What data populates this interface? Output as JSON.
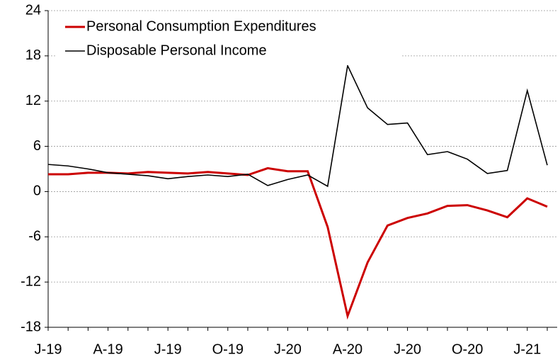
{
  "chart_data": {
    "type": "line",
    "categories": [
      "J-19",
      null,
      null,
      "A-19",
      null,
      null,
      "J-19",
      null,
      null,
      "O-19",
      null,
      null,
      "J-20",
      null,
      null,
      "A-20",
      null,
      null,
      "J-20",
      null,
      null,
      "O-20",
      null,
      null,
      "J-21",
      null
    ],
    "series": [
      {
        "name": "Personal Consumption Expenditures",
        "color": "#cc0000",
        "values": [
          2.3,
          2.3,
          2.5,
          2.5,
          2.4,
          2.6,
          2.5,
          2.4,
          2.6,
          2.4,
          2.2,
          3.1,
          2.7,
          2.7,
          -4.7,
          -16.5,
          -9.4,
          -4.5,
          -3.5,
          -2.9,
          -1.9,
          -1.8,
          -2.5,
          -3.4,
          -0.9,
          -2.0
        ]
      },
      {
        "name": "Disposable Personal Income",
        "color": "#000000",
        "values": [
          3.6,
          3.4,
          3.0,
          2.5,
          2.3,
          2.1,
          1.7,
          2.0,
          2.2,
          2.0,
          2.3,
          0.8,
          1.6,
          2.2,
          0.7,
          16.7,
          11.1,
          8.9,
          9.1,
          4.9,
          5.3,
          4.3,
          2.4,
          2.8,
          13.4,
          3.5
        ]
      }
    ],
    "ylim": [
      -18,
      24
    ],
    "yticks": [
      -18,
      -12,
      -6,
      0,
      6,
      12,
      18,
      24
    ],
    "grid": true,
    "legend": "upper left"
  }
}
